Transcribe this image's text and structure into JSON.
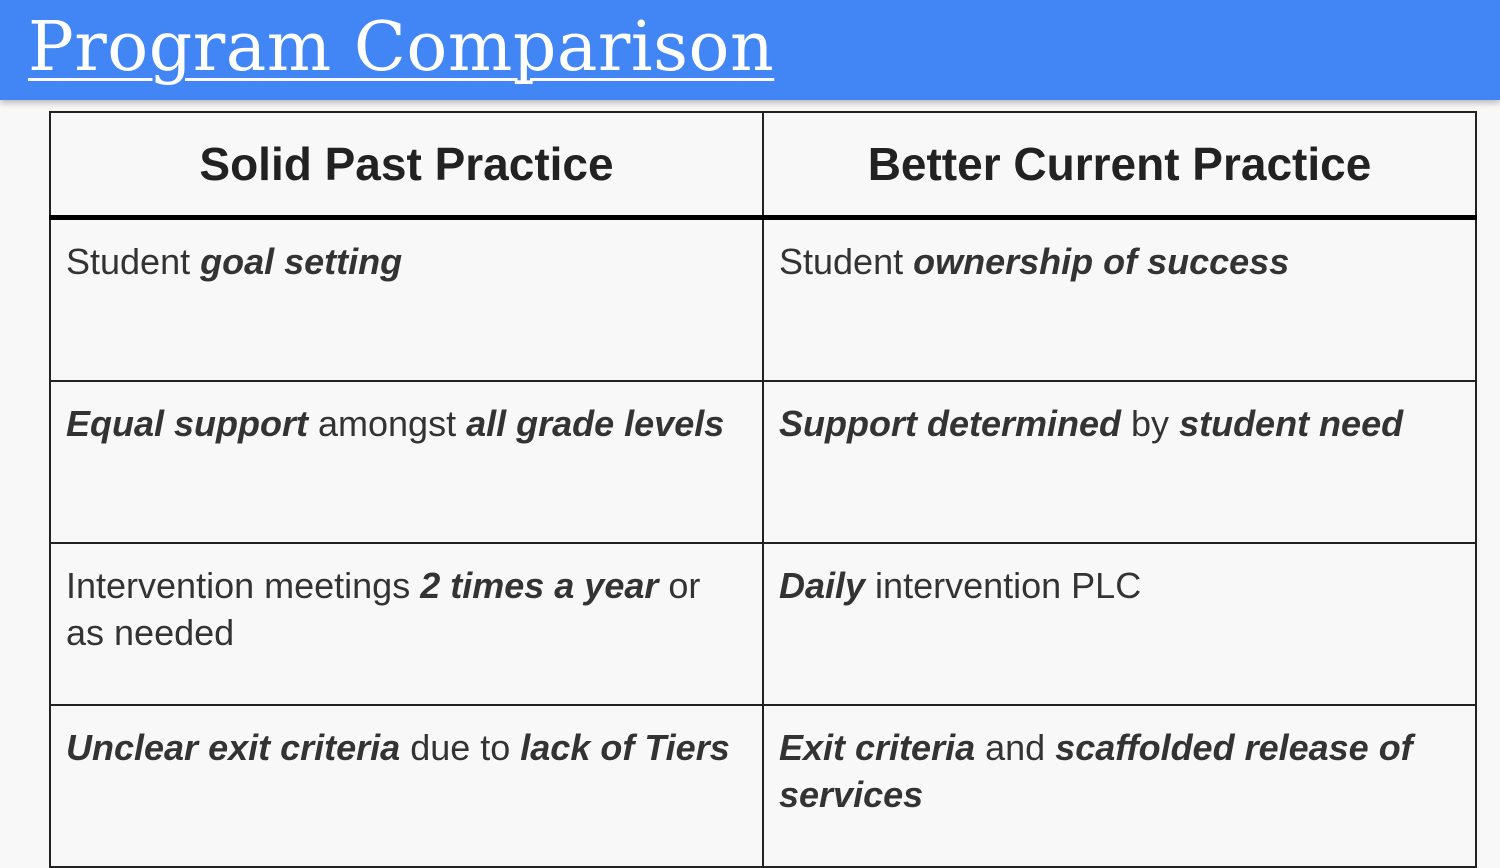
{
  "slide": {
    "title": "Program Comparison"
  },
  "table": {
    "headers": [
      "Solid Past Practice",
      "Better Current Practice"
    ],
    "rows": [
      {
        "past": [
          {
            "text": "Student ",
            "emphasis": false
          },
          {
            "text": "goal setting",
            "emphasis": true
          }
        ],
        "current": [
          {
            "text": "Student ",
            "emphasis": false
          },
          {
            "text": "ownership of success",
            "emphasis": true
          }
        ]
      },
      {
        "past": [
          {
            "text": "Equal support",
            "emphasis": true
          },
          {
            "text": " amongst ",
            "emphasis": false
          },
          {
            "text": "all grade levels",
            "emphasis": true
          }
        ],
        "current": [
          {
            "text": "Support determined",
            "emphasis": true
          },
          {
            "text": " by ",
            "emphasis": false
          },
          {
            "text": "student need",
            "emphasis": true
          }
        ]
      },
      {
        "past": [
          {
            "text": "Intervention meetings ",
            "emphasis": false
          },
          {
            "text": "2 times a year",
            "emphasis": true
          },
          {
            "text": " or as needed",
            "emphasis": false
          }
        ],
        "current": [
          {
            "text": "Daily",
            "emphasis": true
          },
          {
            "text": " intervention PLC",
            "emphasis": false
          }
        ]
      },
      {
        "past": [
          {
            "text": "Unclear exit criteria",
            "emphasis": true
          },
          {
            "text": " due to ",
            "emphasis": false
          },
          {
            "text": "lack of Tiers",
            "emphasis": true
          }
        ],
        "current": [
          {
            "text": "Exit criteria",
            "emphasis": true
          },
          {
            "text": " and ",
            "emphasis": false
          },
          {
            "text": "scaffolded release of services",
            "emphasis": true
          }
        ]
      }
    ]
  },
  "colors": {
    "title_bar": "#4285f4",
    "background": "#f8f8f8",
    "text": "#333333"
  }
}
